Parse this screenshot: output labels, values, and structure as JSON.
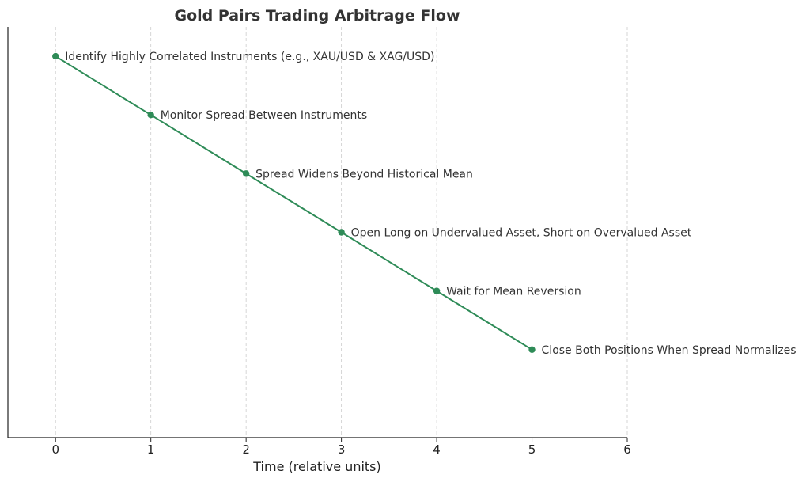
{
  "chart_data": {
    "type": "line",
    "title": "Gold Pairs Trading Arbitrage Flow",
    "xlabel": "Time (relative units)",
    "ylabel": "",
    "xlim": [
      -0.5,
      6
    ],
    "ylim": [
      -0.5,
      6.5
    ],
    "xticks": [
      0,
      1,
      2,
      3,
      4,
      5,
      6
    ],
    "grid": "x-axis vertical dashed",
    "y_axis_ticks_visible": false,
    "color": "#2e8b57",
    "series": [
      {
        "x": [
          0,
          1,
          2,
          3,
          4,
          5
        ],
        "y": [
          6,
          5,
          4,
          3,
          2,
          1
        ],
        "labels": [
          "Identify Highly Correlated Instruments (e.g., XAU/USD & XAG/USD)",
          "Monitor Spread Between Instruments",
          "Spread Widens Beyond Historical Mean",
          "Open Long on Undervalued Asset, Short on Overvalued Asset",
          "Wait for Mean Reversion",
          "Close Both Positions When Spread Normalizes"
        ]
      }
    ]
  }
}
